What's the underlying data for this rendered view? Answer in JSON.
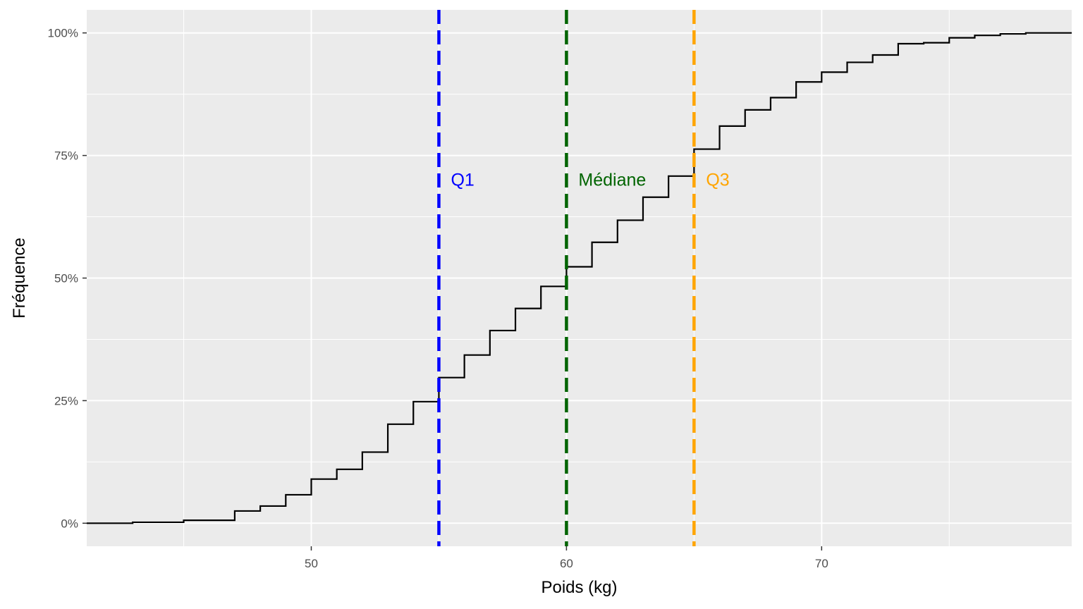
{
  "chart_data": {
    "type": "line",
    "subtype": "step-ecdf",
    "xlabel": "Poids (kg)",
    "ylabel": "Fréquence",
    "xlim": [
      41.2,
      79.8
    ],
    "ylim": [
      -0.047,
      1.047
    ],
    "x_ticks": [
      50,
      60,
      70
    ],
    "x_tick_labels": [
      "50",
      "60",
      "70"
    ],
    "x_minor_breaks": [
      45,
      55,
      65,
      75
    ],
    "y_ticks": [
      0,
      0.25,
      0.5,
      0.75,
      1
    ],
    "y_tick_labels": [
      "0%",
      "25%",
      "50%",
      "75%",
      "100%"
    ],
    "y_minor_breaks": [
      0.125,
      0.375,
      0.625,
      0.875
    ],
    "grid": true,
    "background": "#ebebeb",
    "step_color": "#000000",
    "series": [
      {
        "x": [
          43,
          45,
          47,
          48,
          49,
          50,
          51,
          52,
          53,
          54,
          55,
          56,
          57,
          58,
          59,
          60,
          61,
          62,
          63,
          64,
          65,
          66,
          67,
          68,
          69,
          70,
          71,
          72,
          73,
          74,
          75,
          76,
          77,
          78
        ],
        "y": [
          0.002,
          0.006,
          0.025,
          0.035,
          0.058,
          0.09,
          0.11,
          0.145,
          0.202,
          0.248,
          0.297,
          0.343,
          0.393,
          0.438,
          0.483,
          0.523,
          0.573,
          0.618,
          0.665,
          0.708,
          0.763,
          0.81,
          0.843,
          0.868,
          0.9,
          0.92,
          0.94,
          0.955,
          0.978,
          0.98,
          0.99,
          0.995,
          0.998,
          1.0
        ]
      }
    ],
    "reference_lines": [
      {
        "label": "Q1",
        "x": 55,
        "color": "#0000ff"
      },
      {
        "label": "Médiane",
        "x": 60,
        "color": "#006400"
      },
      {
        "label": "Q3",
        "x": 65,
        "color": "#ffa500"
      }
    ],
    "reference_label_y": 0.7
  }
}
